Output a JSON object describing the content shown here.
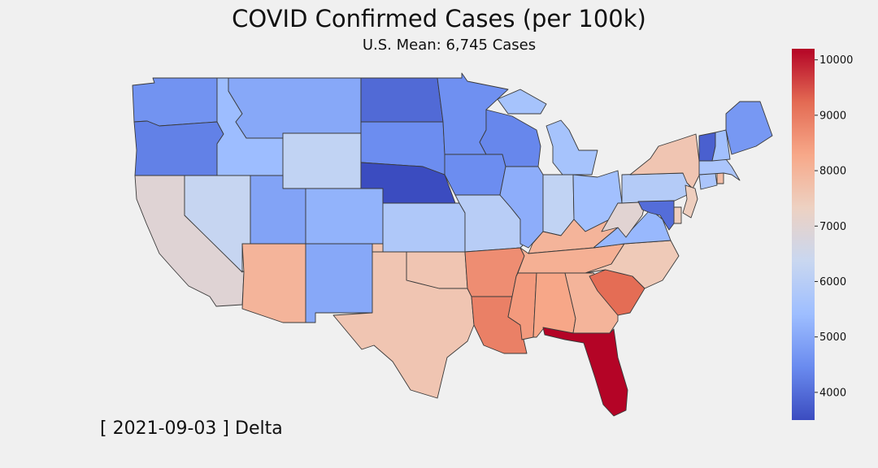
{
  "title": "COVID Confirmed Cases (per 100k)",
  "subtitle": "U.S. Mean: 6,745 Cases",
  "date_label": "[ 2021-09-03 ] Delta",
  "colorbar": {
    "min": 3500,
    "max": 10200,
    "ticks": [
      4000,
      5000,
      6000,
      7000,
      8000,
      9000,
      10000
    ],
    "colors": [
      "#3b4cc0",
      "#6a8bef",
      "#9ebeff",
      "#c9d7f0",
      "#edd1c2",
      "#f7a889",
      "#e36a53",
      "#b40426"
    ]
  },
  "chart_data": {
    "type": "choropleth",
    "title": "COVID Confirmed Cases (per 100k)",
    "subtitle": "U.S. Mean: 6,745 Cases",
    "value_range": [
      3500,
      10200
    ],
    "states": [
      {
        "name": "WA",
        "value": 4600
      },
      {
        "name": "OR",
        "value": 4300
      },
      {
        "name": "CA",
        "value": 6950
      },
      {
        "name": "ID",
        "value": 5400
      },
      {
        "name": "NV",
        "value": 6300
      },
      {
        "name": "MT",
        "value": 5000
      },
      {
        "name": "WY",
        "value": 6200
      },
      {
        "name": "UT",
        "value": 4900
      },
      {
        "name": "AZ",
        "value": 8000
      },
      {
        "name": "CO",
        "value": 5200
      },
      {
        "name": "NM",
        "value": 5000
      },
      {
        "name": "ND",
        "value": 3950
      },
      {
        "name": "SD",
        "value": 4500
      },
      {
        "name": "NE",
        "value": 3500
      },
      {
        "name": "KS",
        "value": 5800
      },
      {
        "name": "OK",
        "value": 7600
      },
      {
        "name": "TX",
        "value": 7600
      },
      {
        "name": "MN",
        "value": 4550
      },
      {
        "name": "IA",
        "value": 4500
      },
      {
        "name": "MO",
        "value": 6000
      },
      {
        "name": "AR",
        "value": 8700
      },
      {
        "name": "LA",
        "value": 8900
      },
      {
        "name": "WI",
        "value": 4400
      },
      {
        "name": "IL",
        "value": 5100
      },
      {
        "name": "MI",
        "value": 5600
      },
      {
        "name": "IN",
        "value": 6200
      },
      {
        "name": "OH",
        "value": 5500
      },
      {
        "name": "KY",
        "value": 8000
      },
      {
        "name": "TN",
        "value": 8100
      },
      {
        "name": "MS",
        "value": 8500
      },
      {
        "name": "AL",
        "value": 8300
      },
      {
        "name": "GA",
        "value": 8000
      },
      {
        "name": "FL",
        "value": 10200
      },
      {
        "name": "SC",
        "value": 9200
      },
      {
        "name": "NC",
        "value": 7500
      },
      {
        "name": "VA",
        "value": 5300
      },
      {
        "name": "WV",
        "value": 7000
      },
      {
        "name": "PA",
        "value": 5900
      },
      {
        "name": "NY",
        "value": 7600
      },
      {
        "name": "NJ",
        "value": 7400
      },
      {
        "name": "DE",
        "value": 7400
      },
      {
        "name": "MD",
        "value": 4000
      },
      {
        "name": "CT",
        "value": 5700
      },
      {
        "name": "RI",
        "value": 7800
      },
      {
        "name": "MA",
        "value": 5700
      },
      {
        "name": "VT",
        "value": 3800
      },
      {
        "name": "NH",
        "value": 5500
      },
      {
        "name": "ME",
        "value": 4700
      }
    ]
  }
}
